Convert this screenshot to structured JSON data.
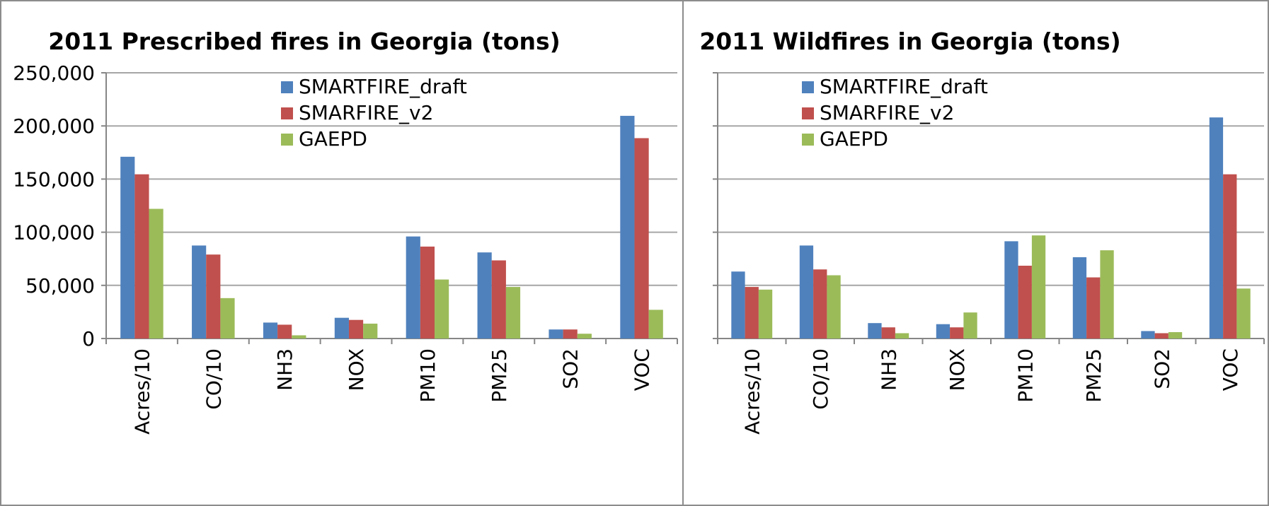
{
  "chart_data": [
    {
      "type": "bar",
      "title": "2011 Prescribed fires in Georgia (tons)",
      "xlabel": "",
      "ylabel": "",
      "categories": [
        "Acres/10",
        "CO/10",
        "NH3",
        "NOX",
        "PM10",
        "PM25",
        "SO2",
        "VOC"
      ],
      "series": [
        {
          "name": "SMARTFIRE_draft",
          "values": [
            171000,
            87500,
            15000,
            19500,
            96000,
            81000,
            8500,
            209500
          ]
        },
        {
          "name": "SMARFIRE_v2",
          "values": [
            154500,
            79000,
            13000,
            17500,
            86500,
            73500,
            8500,
            188500
          ]
        },
        {
          "name": "GAEPD",
          "values": [
            122000,
            38000,
            3000,
            14000,
            55500,
            48500,
            4500,
            27000
          ]
        }
      ],
      "ylim": [
        0,
        250000
      ],
      "yticks": [
        0,
        50000,
        100000,
        150000,
        200000,
        250000
      ],
      "ytick_labels": [
        "0",
        "50,000",
        "100,000",
        "150,000",
        "200,000",
        "250,000"
      ],
      "grid": true,
      "legend_position": "top-right"
    },
    {
      "type": "bar",
      "title": "2011 Wildfires in Georgia (tons)",
      "xlabel": "",
      "ylabel": "",
      "categories": [
        "Acres/10",
        "CO/10",
        "NH3",
        "NOX",
        "PM10",
        "PM25",
        "SO2",
        "VOC"
      ],
      "series": [
        {
          "name": "SMARTFIRE_draft",
          "values": [
            63000,
            87500,
            14500,
            13500,
            91500,
            76500,
            7000,
            208000
          ]
        },
        {
          "name": "SMARFIRE_v2",
          "values": [
            48500,
            65000,
            10500,
            10500,
            68500,
            57500,
            5000,
            154500
          ]
        },
        {
          "name": "GAEPD",
          "values": [
            46000,
            59500,
            5000,
            24500,
            97000,
            83000,
            6000,
            47000
          ]
        }
      ],
      "ylim": [
        0,
        250000
      ],
      "yticks": [
        0,
        50000,
        100000,
        150000,
        200000,
        250000
      ],
      "ytick_labels": [
        "",
        "",
        "",
        "",
        "",
        ""
      ],
      "grid": true,
      "legend_position": "top-right"
    }
  ],
  "colors": {
    "SMARTFIRE_draft": "#4f81bd",
    "SMARFIRE_v2": "#c0504d",
    "GAEPD": "#9bbb59",
    "grid": "#a6a6a6",
    "axis": "#868686"
  }
}
